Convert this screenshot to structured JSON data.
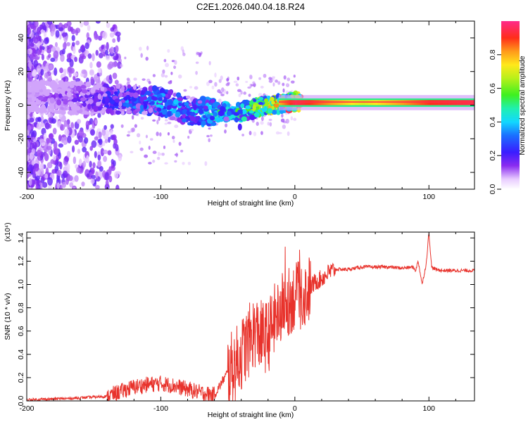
{
  "title": "C2E1.2026.040.04.18.R24",
  "chart_data": [
    {
      "type": "heatmap",
      "xlabel": "Height of straight line (km)",
      "ylabel": "Frequency (Hz)",
      "xlim": [
        -200,
        134
      ],
      "ylim": [
        -50,
        50
      ],
      "xticks": [
        -200,
        -100,
        0,
        100
      ],
      "yticks": [
        -40,
        -20,
        0,
        20,
        40
      ],
      "colorbar": {
        "label": "Normalized spectral amplitude",
        "range": [
          0,
          1
        ],
        "ticks": [
          "0.0",
          "0.2",
          "0.4",
          "0.6",
          "0.8"
        ]
      },
      "ridge": [
        {
          "x": -200,
          "f": 5,
          "amp": 0.1
        },
        {
          "x": -150,
          "f": 4,
          "amp": 0.2
        },
        {
          "x": -120,
          "f": 3,
          "amp": 0.35
        },
        {
          "x": -100,
          "f": 2,
          "amp": 0.38
        },
        {
          "x": -80,
          "f": -3,
          "amp": 0.35
        },
        {
          "x": -60,
          "f": -4,
          "amp": 0.45
        },
        {
          "x": -40,
          "f": -4,
          "amp": 0.5
        },
        {
          "x": -20,
          "f": 0,
          "amp": 0.7
        },
        {
          "x": 0,
          "f": 2,
          "amp": 0.95
        },
        {
          "x": 50,
          "f": 1.5,
          "amp": 0.7
        },
        {
          "x": 100,
          "f": 1.5,
          "amp": 0.9
        },
        {
          "x": 134,
          "f": 1.5,
          "amp": 0.95
        }
      ]
    },
    {
      "type": "line",
      "xlabel": "Height of straight line (km)",
      "ylabel": "SNR (10 * v/v)",
      "yscale_label": "(x10⁴)",
      "xlim": [
        -200,
        134
      ],
      "ylim": [
        0,
        1.45
      ],
      "xticks": [
        -200,
        -100,
        0,
        100
      ],
      "yticks": [
        0.0,
        0.2,
        0.4,
        0.6,
        0.8,
        1.0,
        1.2,
        1.4
      ],
      "series": [
        {
          "name": "SNR",
          "color": "#e8322b",
          "x": [
            -200,
            -170,
            -140,
            -120,
            -110,
            -100,
            -90,
            -80,
            -70,
            -60,
            -55,
            -50,
            -45,
            -40,
            -35,
            -30,
            -25,
            -20,
            -15,
            -10,
            -5,
            0,
            5,
            10,
            15,
            20,
            25,
            30,
            40,
            50,
            60,
            70,
            80,
            88,
            90,
            92,
            95,
            98,
            100,
            102,
            105,
            110,
            120,
            134
          ],
          "y": [
            0.01,
            0.02,
            0.04,
            0.12,
            0.14,
            0.15,
            0.13,
            0.1,
            0.07,
            0.05,
            0.15,
            0.25,
            0.3,
            0.4,
            0.5,
            0.6,
            0.55,
            0.55,
            0.7,
            0.8,
            0.85,
            0.9,
            0.9,
            0.95,
            1.02,
            1.05,
            1.1,
            1.13,
            1.13,
            1.15,
            1.15,
            1.15,
            1.14,
            1.15,
            1.12,
            1.2,
            1.0,
            1.18,
            1.45,
            1.15,
            1.13,
            1.12,
            1.12,
            1.12
          ]
        }
      ]
    }
  ]
}
